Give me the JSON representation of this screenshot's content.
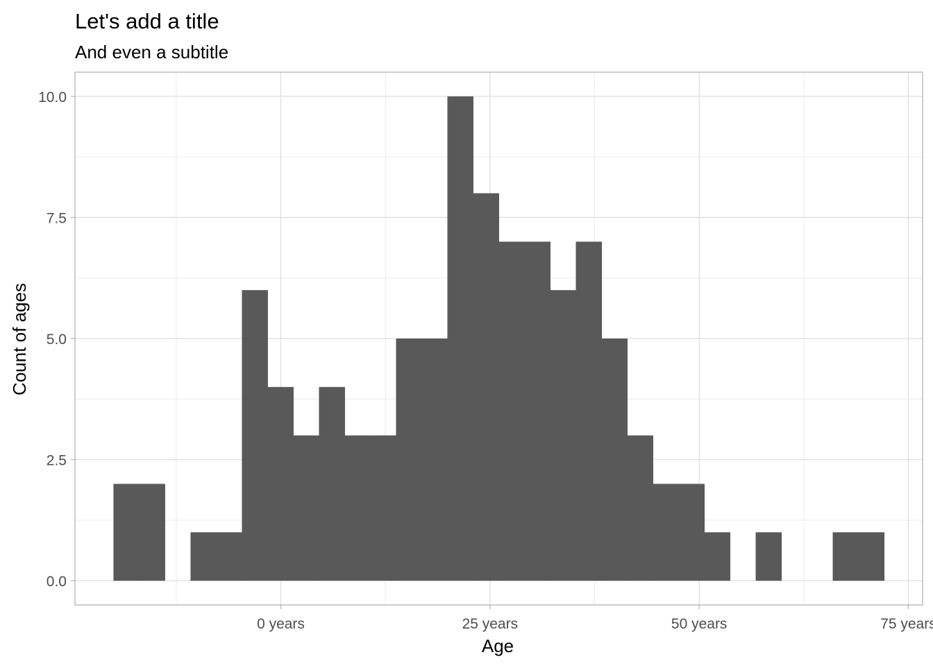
{
  "chart_data": {
    "type": "bar",
    "title": "Let's add a title",
    "subtitle": "And even a subtitle",
    "xlabel": "Age",
    "ylabel": "Count of ages",
    "bin_width": 3.07,
    "bins": [
      {
        "start": -20.0,
        "end": -16.93,
        "count": 2
      },
      {
        "start": -16.93,
        "end": -13.86,
        "count": 2
      },
      {
        "start": -13.86,
        "end": -10.79,
        "count": 0
      },
      {
        "start": -10.79,
        "end": -7.72,
        "count": 1
      },
      {
        "start": -7.72,
        "end": -4.65,
        "count": 1
      },
      {
        "start": -4.65,
        "end": -1.58,
        "count": 6
      },
      {
        "start": -1.58,
        "end": 1.49,
        "count": 4
      },
      {
        "start": 1.49,
        "end": 4.56,
        "count": 3
      },
      {
        "start": 4.56,
        "end": 7.63,
        "count": 4
      },
      {
        "start": 7.63,
        "end": 10.7,
        "count": 3
      },
      {
        "start": 10.7,
        "end": 13.77,
        "count": 3
      },
      {
        "start": 13.77,
        "end": 16.84,
        "count": 5
      },
      {
        "start": 16.84,
        "end": 19.91,
        "count": 5
      },
      {
        "start": 19.91,
        "end": 22.98,
        "count": 10
      },
      {
        "start": 22.98,
        "end": 26.05,
        "count": 8
      },
      {
        "start": 26.05,
        "end": 29.12,
        "count": 7
      },
      {
        "start": 29.12,
        "end": 32.19,
        "count": 7
      },
      {
        "start": 32.19,
        "end": 35.26,
        "count": 6
      },
      {
        "start": 35.26,
        "end": 38.33,
        "count": 7
      },
      {
        "start": 38.33,
        "end": 41.4,
        "count": 5
      },
      {
        "start": 41.4,
        "end": 44.47,
        "count": 3
      },
      {
        "start": 44.47,
        "end": 47.54,
        "count": 2
      },
      {
        "start": 47.54,
        "end": 50.61,
        "count": 2
      },
      {
        "start": 50.61,
        "end": 53.68,
        "count": 1
      },
      {
        "start": 53.68,
        "end": 56.75,
        "count": 0
      },
      {
        "start": 56.75,
        "end": 59.82,
        "count": 1
      },
      {
        "start": 59.82,
        "end": 62.89,
        "count": 0
      },
      {
        "start": 62.89,
        "end": 65.96,
        "count": 0
      },
      {
        "start": 65.96,
        "end": 69.03,
        "count": 1
      },
      {
        "start": 69.03,
        "end": 72.1,
        "count": 1
      }
    ],
    "xlim": [
      -24.6,
      76.7
    ],
    "ylim": [
      -0.5,
      10.5
    ],
    "x_ticks": [
      0,
      25,
      50,
      75
    ],
    "x_tick_labels": [
      "0 years",
      "25 years",
      "50 years",
      "75 years"
    ],
    "x_minor_ticks": [
      -12.5,
      12.5,
      37.5,
      62.5
    ],
    "y_ticks": [
      0,
      2.5,
      5,
      7.5,
      10
    ],
    "y_tick_labels": [
      "0.0",
      "2.5",
      "5.0",
      "7.5",
      "10.0"
    ],
    "y_minor_ticks": [
      1.25,
      3.75,
      6.25,
      8.75
    ],
    "grid": true,
    "legend": "none",
    "colors": {
      "bar": "#595959",
      "grid_major": "#dedede",
      "grid_minor": "#ececec",
      "panel_border": "#b3b3b3"
    }
  }
}
